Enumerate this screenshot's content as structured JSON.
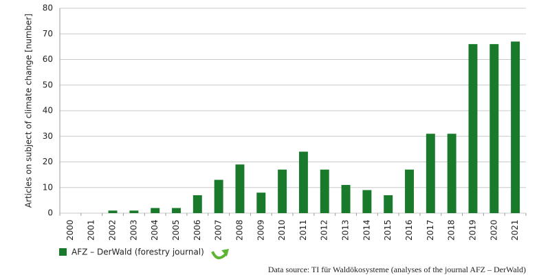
{
  "chart_data": {
    "type": "bar",
    "y_label": "Articles on subject of climate change [number]",
    "categories": [
      "2000",
      "2001",
      "2002",
      "2003",
      "2004",
      "2005",
      "2006",
      "2007",
      "2008",
      "2009",
      "2010",
      "2011",
      "2012",
      "2013",
      "2014",
      "2015",
      "2016",
      "2017",
      "2018",
      "2019",
      "2020",
      "2021"
    ],
    "series": [
      {
        "name": "AFZ – DerWald (forestry journal)",
        "color": "#1a7a2c",
        "values": [
          0,
          0,
          1,
          1,
          2,
          2,
          7,
          13,
          19,
          8,
          17,
          24,
          17,
          11,
          9,
          7,
          17,
          31,
          31,
          66,
          66,
          67
        ]
      }
    ],
    "ylim": [
      0,
      80
    ],
    "yticks": [
      0,
      10,
      20,
      30,
      40,
      50,
      60,
      70,
      80
    ],
    "grid": true,
    "source": "Data source: TI für Waldökosysteme (analyses of the journal AFZ – DerWald)"
  }
}
